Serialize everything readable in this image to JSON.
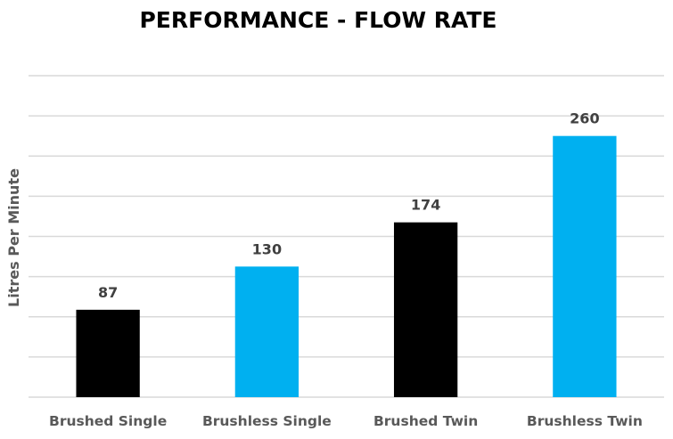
{
  "chart_data": {
    "type": "bar",
    "title": "PERFORMANCE - FLOW RATE",
    "xlabel": "",
    "ylabel": "Litres Per Minute",
    "categories": [
      "Brushed Single",
      "Brushless Single",
      "Brushed Twin",
      "Brushless Twin"
    ],
    "values": [
      87,
      130,
      174,
      260
    ],
    "data_labels": [
      "87",
      "130",
      "174",
      "260"
    ],
    "colors": [
      "#000000",
      "#00b0f0",
      "#000000",
      "#00b0f0"
    ],
    "ylim": [
      0,
      320
    ],
    "y_gridline_step": 40,
    "y_tick_labels_shown": false,
    "grid": true,
    "legend": "none"
  }
}
